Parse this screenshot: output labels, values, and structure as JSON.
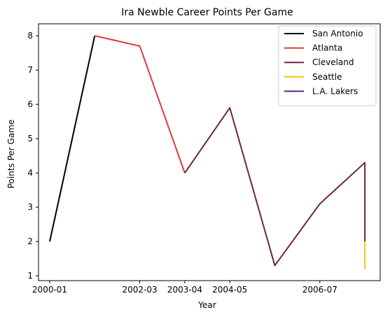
{
  "chart_data": {
    "type": "line",
    "title": "Ira Newble Career Points Per Game",
    "xlabel": "Year",
    "ylabel": "Points Per Game",
    "x_ticks": [
      "2000-01",
      "2002-03",
      "2003-04",
      "2004-05",
      "2006-07"
    ],
    "y_ticks": [
      "1",
      "2",
      "3",
      "4",
      "5",
      "6",
      "7",
      "8"
    ],
    "ylim": [
      0.86,
      8.35
    ],
    "grid": false,
    "legend_position": "top-right",
    "seasons": [
      "2000-01",
      "2001-02",
      "2002-03",
      "2003-04",
      "2004-05",
      "2005-06",
      "2006-07",
      "2007-08"
    ],
    "series": [
      {
        "name": "San Antonio",
        "color": "#000000",
        "points": [
          [
            "2000-01",
            2.0
          ],
          [
            "2001-02",
            8.0
          ]
        ]
      },
      {
        "name": "Atlanta",
        "color": "#e03a3e",
        "points": [
          [
            "2001-02",
            8.0
          ],
          [
            "2002-03",
            7.7
          ],
          [
            "2003-04",
            4.0
          ]
        ]
      },
      {
        "name": "Cleveland",
        "color": "#6f263d",
        "points": [
          [
            "2003-04",
            4.0
          ],
          [
            "2004-05",
            5.9
          ],
          [
            "2005-06",
            1.3
          ],
          [
            "2006-07",
            3.1
          ],
          [
            "2007-08",
            4.3
          ],
          [
            "2007-08",
            2.0
          ]
        ]
      },
      {
        "name": "Seattle",
        "color": "#ffc200",
        "points": [
          [
            "2007-08",
            2.0
          ],
          [
            "2007-08",
            1.2
          ]
        ]
      },
      {
        "name": "L.A. Lakers",
        "color": "#552583",
        "points": []
      }
    ]
  }
}
